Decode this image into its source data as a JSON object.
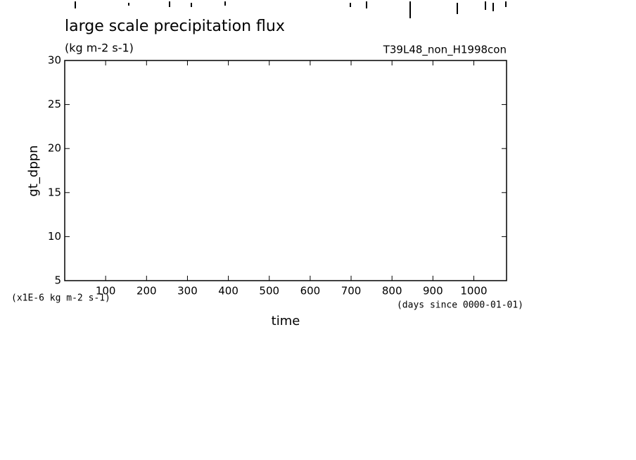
{
  "chart_data": {
    "type": "line",
    "title": "large scale precipitation flux",
    "subtitle": "(kg m-2 s-1)",
    "annotation": "T39L48_non_H1998con",
    "y_label": "gt_dppn",
    "x_label": "time",
    "y_unit_note": "(x1E-6 kg m-2 s-1)",
    "x_unit_note": "(days since 0000-01-01)",
    "xlim": [
      0,
      1080
    ],
    "xticks": [
      100,
      200,
      300,
      400,
      500,
      600,
      700,
      800,
      900,
      1000
    ],
    "ylim": [
      5,
      30
    ],
    "yticks": [
      5,
      10,
      15,
      20,
      25,
      30
    ],
    "color": "#000000"
  }
}
